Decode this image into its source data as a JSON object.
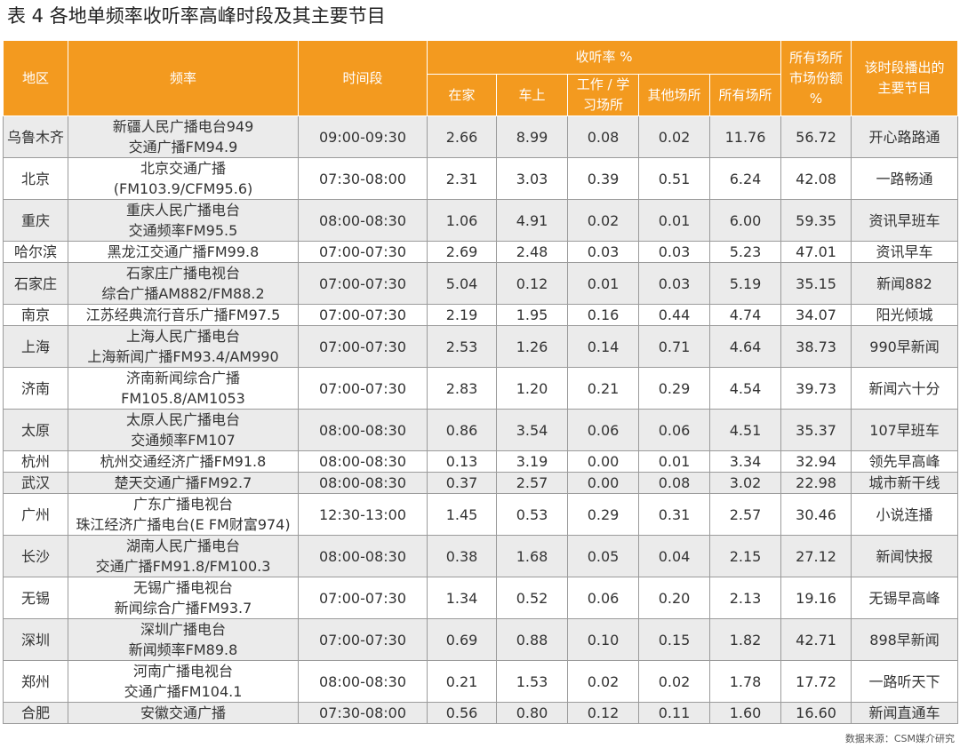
{
  "title": "表 4 各地单频率收听率高峰时段及其主要节目",
  "header": {
    "region": "地区",
    "frequency": "频率",
    "time": "时间段",
    "rating": "收听率 %",
    "home": "在家",
    "car": "车上",
    "work_line1": "工作 / 学",
    "work_line2": "习场所",
    "other": "其他场所",
    "all": "所有场所",
    "share_line1": "所有场所",
    "share_line2": "市场份额",
    "share_line3": "%",
    "program_line1": "该时段播出的",
    "program_line2": "主要节目"
  },
  "rows": [
    {
      "region": "乌鲁木齐",
      "freq1": "新疆人民广播电台949",
      "freq2": "交通广播FM94.9",
      "time": "09:00-09:30",
      "home": "2.66",
      "car": "8.99",
      "work": "0.08",
      "other": "0.02",
      "all": "11.76",
      "share": "56.72",
      "program": "开心路路通"
    },
    {
      "region": "北京",
      "freq1": "北京交通广播",
      "freq2": "(FM103.9/CFM95.6)",
      "time": "07:30-08:00",
      "home": "2.31",
      "car": "3.03",
      "work": "0.39",
      "other": "0.51",
      "all": "6.24",
      "share": "42.08",
      "program": "一路畅通"
    },
    {
      "region": "重庆",
      "freq1": "重庆人民广播电台",
      "freq2": "交通频率FM95.5",
      "time": "08:00-08:30",
      "home": "1.06",
      "car": "4.91",
      "work": "0.02",
      "other": "0.01",
      "all": "6.00",
      "share": "59.35",
      "program": "资讯早班车"
    },
    {
      "region": "哈尔滨",
      "freq1": "黑龙江交通广播FM99.8",
      "freq2": "",
      "time": "07:00-07:30",
      "home": "2.69",
      "car": "2.48",
      "work": "0.03",
      "other": "0.03",
      "all": "5.23",
      "share": "47.01",
      "program": "资讯早车"
    },
    {
      "region": "石家庄",
      "freq1": "石家庄广播电视台",
      "freq2": "综合广播AM882/FM88.2",
      "time": "07:00-07:30",
      "home": "5.04",
      "car": "0.12",
      "work": "0.01",
      "other": "0.03",
      "all": "5.19",
      "share": "35.15",
      "program": "新闻882"
    },
    {
      "region": "南京",
      "freq1": "江苏经典流行音乐广播FM97.5",
      "freq2": "",
      "time": "07:00-07:30",
      "home": "2.19",
      "car": "1.95",
      "work": "0.16",
      "other": "0.44",
      "all": "4.74",
      "share": "34.07",
      "program": "阳光倾城"
    },
    {
      "region": "上海",
      "freq1": "上海人民广播电台",
      "freq2": "上海新闻广播FM93.4/AM990",
      "time": "07:00-07:30",
      "home": "2.53",
      "car": "1.26",
      "work": "0.14",
      "other": "0.71",
      "all": "4.64",
      "share": "38.73",
      "program": "990早新闻"
    },
    {
      "region": "济南",
      "freq1": "济南新闻综合广播",
      "freq2": "FM105.8/AM1053",
      "time": "07:00-07:30",
      "home": "2.83",
      "car": "1.20",
      "work": "0.21",
      "other": "0.29",
      "all": "4.54",
      "share": "39.73",
      "program": "新闻六十分"
    },
    {
      "region": "太原",
      "freq1": "太原人民广播电台",
      "freq2": "交通频率FM107",
      "time": "08:00-08:30",
      "home": "0.86",
      "car": "3.54",
      "work": "0.06",
      "other": "0.06",
      "all": "4.51",
      "share": "35.37",
      "program": "107早班车"
    },
    {
      "region": "杭州",
      "freq1": "杭州交通经济广播FM91.8",
      "freq2": "",
      "time": "08:00-08:30",
      "home": "0.13",
      "car": "3.19",
      "work": "0.00",
      "other": "0.01",
      "all": "3.34",
      "share": "32.94",
      "program": "领先早高峰"
    },
    {
      "region": "武汉",
      "freq1": "楚天交通广播FM92.7",
      "freq2": "",
      "time": "08:00-08:30",
      "home": "0.37",
      "car": "2.57",
      "work": "0.00",
      "other": "0.08",
      "all": "3.02",
      "share": "22.98",
      "program": "城市新干线"
    },
    {
      "region": "广州",
      "freq1": "广东广播电视台",
      "freq2": "珠江经济广播电台(E FM财富974)",
      "time": "12:30-13:00",
      "home": "1.45",
      "car": "0.53",
      "work": "0.29",
      "other": "0.31",
      "all": "2.57",
      "share": "30.46",
      "program": "小说连播"
    },
    {
      "region": "长沙",
      "freq1": "湖南人民广播电台",
      "freq2": "交通广播FM91.8/FM100.3",
      "time": "08:00-08:30",
      "home": "0.38",
      "car": "1.68",
      "work": "0.05",
      "other": "0.04",
      "all": "2.15",
      "share": "27.12",
      "program": "新闻快报"
    },
    {
      "region": "无锡",
      "freq1": "无锡广播电视台",
      "freq2": "新闻综合广播FM93.7",
      "time": "07:00-07:30",
      "home": "1.34",
      "car": "0.52",
      "work": "0.06",
      "other": "0.20",
      "all": "2.13",
      "share": "19.16",
      "program": "无锡早高峰"
    },
    {
      "region": "深圳",
      "freq1": "深圳广播电台",
      "freq2": "新闻频率FM89.8",
      "time": "07:00-07:30",
      "home": "0.69",
      "car": "0.88",
      "work": "0.10",
      "other": "0.15",
      "all": "1.82",
      "share": "42.71",
      "program": "898早新闻"
    },
    {
      "region": "郑州",
      "freq1": "河南广播电视台",
      "freq2": "交通广播FM104.1",
      "time": "08:00-08:30",
      "home": "0.21",
      "car": "1.53",
      "work": "0.02",
      "other": "0.02",
      "all": "1.78",
      "share": "17.72",
      "program": "一路听天下"
    },
    {
      "region": "合肥",
      "freq1": "安徽交通广播",
      "freq2": "",
      "time": "07:30-08:00",
      "home": "0.56",
      "car": "0.80",
      "work": "0.12",
      "other": "0.11",
      "all": "1.60",
      "share": "16.60",
      "program": "新闻直通车"
    }
  ],
  "source": "数据来源：CSM媒介研究",
  "colors": {
    "header_bg": "#f39a1f",
    "stripe": "#ebebeb",
    "border": "#9b9b9b"
  }
}
